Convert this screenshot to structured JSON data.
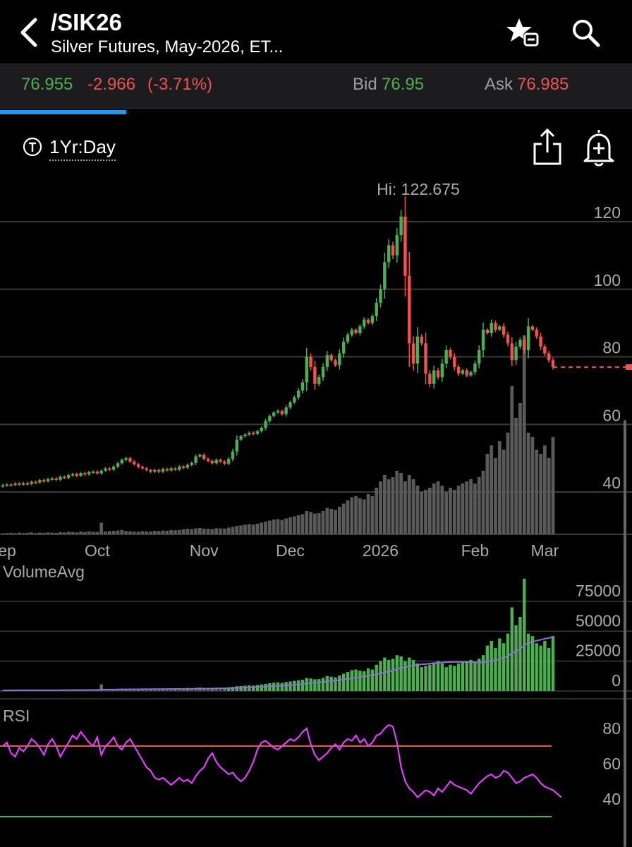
{
  "header": {
    "symbol": "/SIK26",
    "description": "Silver Futures, May-2026, ET..."
  },
  "quote": {
    "last": "76.955",
    "change": "-2.966",
    "change_pct": "(-3.71%)",
    "bid_label": "Bid",
    "bid": "76.95",
    "ask_label": "Ask",
    "ask": "76.985",
    "load_progress": 0.2
  },
  "toolbar": {
    "timeframe": "1Yr:Day"
  },
  "colors": {
    "up": "#4caf50",
    "down": "#ef5350",
    "rsi_line": "#e040fb",
    "volume_avg_line": "#8e6fd8",
    "accent": "#2196f3"
  },
  "icons": [
    "back-icon",
    "watchlist-add-icon",
    "search-icon",
    "timeframe-icon",
    "share-icon",
    "alert-add-icon"
  ],
  "chart_data": [
    {
      "type": "candlestick",
      "title": "",
      "hi_label": "Hi: 122.675",
      "x_ticks": [
        "ep",
        "Oct",
        "Nov",
        "Dec",
        "2026",
        "Feb",
        "Mar"
      ],
      "y_ticks": [
        120,
        100,
        80,
        60,
        40
      ],
      "ylim": [
        34,
        124
      ],
      "last_price": 76.955,
      "series": [
        {
          "values": [
            42.0,
            42.2,
            42.1,
            42.5,
            42.3,
            42.6,
            42.4,
            43.0,
            42.8,
            43.5,
            43.2,
            43.8,
            44.0,
            43.6,
            44.5,
            44.2,
            45.0,
            45.3,
            44.8,
            45.6,
            45.2,
            45.9,
            46.0,
            45.5,
            46.3,
            47.0,
            46.6,
            47.5,
            48.5,
            49.5,
            50.0,
            49.0,
            48.2,
            47.4,
            47.0,
            46.5,
            46.0,
            46.5,
            46.0,
            46.8,
            46.4,
            47.0,
            46.6,
            47.5,
            47.2,
            48.0,
            48.6,
            50.5,
            51.0,
            49.8,
            49.2,
            48.5,
            49.5,
            49.0,
            48.4,
            49.8,
            52.0,
            55.5,
            56.5,
            57.0,
            57.5,
            57.2,
            58.0,
            59.0,
            61.0,
            62.5,
            63.5,
            64.0,
            63.0,
            65.0,
            66.5,
            68.0,
            70.0,
            72.5,
            80.0,
            77.0,
            72.0,
            74.0,
            77.0,
            80.5,
            79.0,
            77.5,
            81.0,
            84.5,
            86.5,
            88.0,
            87.0,
            89.0,
            91.0,
            90.0,
            92.0,
            96.0,
            100.0,
            108.0,
            113.0,
            110.0,
            116.0,
            121.5,
            104.0,
            84.0,
            78.0,
            86.0,
            84.0,
            75.0,
            72.0,
            76.0,
            74.0,
            78.0,
            82.0,
            80.0,
            77.0,
            75.0,
            76.0,
            74.5,
            75.5,
            78.0,
            82.0,
            88.0,
            87.0,
            90.0,
            88.0,
            89.0,
            86.5,
            84.0,
            79.0,
            83.0,
            85.0,
            82.0,
            89.0,
            88.0,
            86.0,
            83.0,
            81.0,
            79.0,
            76.955
          ]
        }
      ]
    },
    {
      "type": "bar",
      "title": "",
      "series": [
        {
          "values": [
            0,
            0,
            0,
            0,
            0,
            0,
            0,
            0,
            0,
            0,
            0,
            0,
            0,
            0,
            0,
            0,
            0,
            0,
            0,
            0,
            0,
            0,
            0,
            0,
            0,
            0,
            0,
            0,
            0,
            0,
            0,
            0,
            0,
            0,
            0,
            0,
            0,
            0,
            0,
            0,
            0,
            0,
            0,
            0,
            0,
            0,
            0,
            0,
            0,
            0,
            0,
            0,
            0,
            0,
            0,
            0,
            0,
            0,
            0,
            0,
            0,
            0,
            0,
            0,
            0,
            0,
            0,
            0,
            0,
            0,
            0,
            0,
            0,
            0,
            0,
            0,
            0,
            0,
            0,
            0,
            0,
            0,
            0,
            0,
            0,
            0,
            0,
            0,
            0,
            0,
            0,
            0,
            0,
            0,
            0,
            0,
            0,
            0,
            0,
            0,
            0,
            0,
            0,
            0,
            0,
            0,
            0,
            0,
            0,
            0,
            0,
            0,
            0,
            0,
            0,
            0,
            0,
            0,
            0,
            0,
            0,
            0,
            0,
            0,
            0,
            0,
            0,
            0,
            0,
            0,
            0,
            0,
            0,
            0,
            0,
            0,
            0
          ]
        }
      ],
      "note_from_image": "",
      "ylim": [
        0,
        100
      ]
    },
    {
      "type": "bar",
      "title": "VolumeAvg",
      "y_ticks": [
        75000,
        50000,
        25000,
        0
      ],
      "ylim": [
        -10000,
        100000
      ],
      "series": [
        {
          "name": "",
          "values": [
            500,
            600,
            700,
            500,
            800,
            600,
            700,
            900,
            600,
            800,
            700,
            900,
            800,
            700,
            1000,
            900,
            1200,
            1100,
            900,
            1300,
            1000,
            1400,
            1200,
            1100,
            5500,
            1300,
            1500,
            1600,
            1800,
            2000,
            1500,
            1400,
            1300,
            1200,
            1500,
            1400,
            1300,
            1600,
            1500,
            1800,
            1700,
            2000,
            1900,
            2100,
            2400,
            2600,
            2500,
            2800,
            3000,
            2700,
            2600,
            2500,
            2900,
            2800,
            2700,
            3200,
            3500,
            4000,
            4200,
            4500,
            4800,
            4600,
            5000,
            5500,
            6000,
            6500,
            7000,
            7200,
            6800,
            7500,
            8000,
            8500,
            9000,
            9500,
            11000,
            10500,
            9800,
            10000,
            11000,
            12500,
            12000,
            11500,
            13000,
            14500,
            16000,
            17500,
            18000,
            17000,
            16500,
            19000,
            18000,
            22000,
            25000,
            28000,
            26000,
            27000,
            30000,
            29000,
            25000,
            28000,
            26000,
            23000,
            20000,
            21000,
            22000,
            24000,
            25000,
            23000,
            20000,
            22000,
            21000,
            23000,
            24000,
            25000,
            26000,
            24000,
            27000,
            30000,
            38000,
            42000,
            36000,
            44000,
            40000,
            48000,
            70000,
            55000,
            62000,
            94000,
            48000,
            46000,
            40000,
            38000,
            42000,
            36000,
            46000,
            44000,
            34000
          ]
        },
        {
          "name": "",
          "values": [
            0,
            0,
            0,
            0,
            0,
            0,
            0,
            0,
            0,
            0,
            0,
            0,
            0,
            0,
            0,
            0,
            0,
            0,
            0,
            0,
            0,
            0,
            0,
            0,
            0,
            0,
            0,
            0,
            0,
            0,
            0,
            0,
            0,
            0,
            0,
            0,
            0,
            0,
            0,
            0,
            0,
            0,
            0,
            0,
            0,
            0,
            0,
            0,
            0,
            0,
            0,
            0,
            0,
            0,
            0,
            0,
            0,
            0,
            0,
            0,
            0,
            0,
            0,
            0,
            0,
            0,
            0,
            0,
            0,
            0,
            0,
            0,
            0,
            0,
            0,
            0,
            0,
            0,
            0,
            0,
            0,
            0,
            0,
            0,
            0,
            0,
            0,
            0,
            0,
            0,
            0,
            0,
            0,
            0,
            0,
            0,
            0,
            0,
            0,
            0,
            0,
            0,
            0,
            0,
            0,
            0,
            0,
            0,
            0,
            0,
            0,
            0,
            0,
            0,
            0,
            0,
            0,
            0,
            0,
            0,
            0,
            0,
            0,
            0,
            0,
            0,
            0,
            0,
            0,
            0,
            0,
            0,
            0,
            0,
            0,
            0,
            0
          ]
        }
      ]
    },
    {
      "type": "line",
      "title": "RSI",
      "y_ticks": [
        80,
        60,
        40
      ],
      "ylim": [
        23,
        90
      ],
      "reference_lines": [
        70,
        30
      ],
      "series": [
        {
          "name": "",
          "values": [
            70,
            72,
            66,
            64,
            69,
            67,
            70,
            74,
            72,
            69,
            65,
            71,
            74,
            70,
            64,
            68,
            72,
            76,
            74,
            78,
            75,
            72,
            70,
            75,
            65,
            70,
            72,
            75,
            70,
            68,
            72,
            74,
            70,
            66,
            62,
            58,
            56,
            52,
            51,
            52,
            50,
            48,
            50,
            52,
            50,
            51,
            49,
            53,
            56,
            58,
            63,
            66,
            61,
            58,
            56,
            54,
            55,
            52,
            50,
            52,
            56,
            61,
            68,
            72,
            73,
            71,
            69,
            68,
            70,
            72,
            74,
            73,
            75,
            78,
            80,
            71,
            65,
            62,
            64,
            66,
            69,
            71,
            68,
            72,
            74,
            73,
            76,
            72,
            74,
            70,
            72,
            76,
            77,
            80,
            82,
            81,
            72,
            58,
            50,
            46,
            44,
            41,
            43,
            45,
            44,
            42,
            46,
            44,
            47,
            50,
            48,
            47,
            46,
            45,
            43,
            46,
            49,
            51,
            53,
            54,
            52,
            53,
            56,
            55,
            52,
            49,
            50,
            52,
            53,
            54,
            52,
            49,
            47,
            46,
            45,
            43,
            41
          ]
        }
      ]
    }
  ]
}
